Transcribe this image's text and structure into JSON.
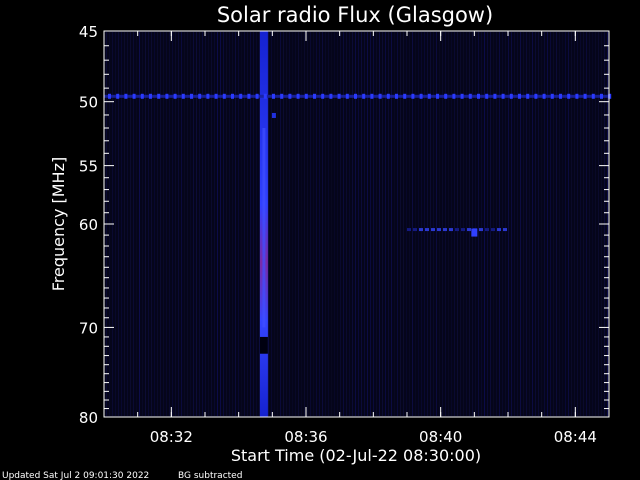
{
  "chart_data": {
    "type": "heatmap",
    "title": "Solar radio Flux (Glasgow)",
    "xlabel": "Start Time (02-Jul-22 08:30:00)",
    "ylabel": "Frequency [MHz]",
    "x_unit": "time",
    "x_ticks": [
      "08:32",
      "08:36",
      "08:40",
      "08:44"
    ],
    "y_ticks": [
      45,
      50,
      55,
      60,
      70,
      80
    ],
    "xlim": [
      "08:30:00",
      "08:45:00"
    ],
    "ylim": [
      45,
      80
    ],
    "y_scale": "log",
    "grid": false,
    "colormap": "black-blue-red",
    "features": [
      {
        "kind": "vertical-burst",
        "time": "08:34:45",
        "freq_range": [
          45,
          80
        ],
        "intensity": "high",
        "peak_freq": 61
      },
      {
        "kind": "horizontal-interference",
        "freq": 49.6,
        "time_range": [
          "08:30:00",
          "08:45:00"
        ],
        "intensity": "medium"
      },
      {
        "kind": "narrowband-emission",
        "freq": 60.5,
        "time_range": [
          "08:39:00",
          "08:42:00"
        ],
        "intensity": "low"
      }
    ],
    "footer_left": "Updated Sat Jul  2 09:01:30 2022",
    "footer_right": "BG subtracted"
  },
  "colors": {
    "background": "#000000",
    "low": "#0a0a30",
    "mid": "#2233ff",
    "high": "#8030a0",
    "axis": "#ffffff"
  }
}
